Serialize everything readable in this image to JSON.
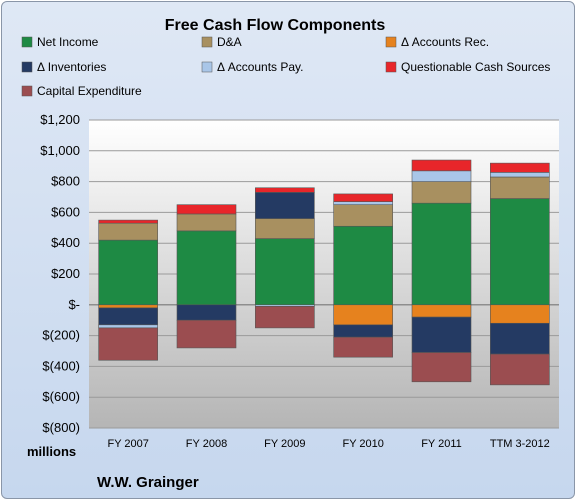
{
  "chart_data": {
    "type": "bar",
    "stacked": true,
    "title": "Free Cash Flow Components",
    "ylabel": "millions",
    "ylim": [
      -800,
      1200
    ],
    "yticks": [
      1200,
      1000,
      800,
      600,
      400,
      200,
      0,
      -200,
      -400,
      -600,
      -800
    ],
    "ytick_labels": [
      "$1,200",
      "$1,000",
      "$800",
      "$600",
      "$400",
      "$200",
      "$-",
      "$(200)",
      "$(400)",
      "$(600)",
      "$(800)"
    ],
    "categories": [
      "FY 2007",
      "FY 2008",
      "FY 2009",
      "FY 2010",
      "FY 2011",
      "TTM 3-2012"
    ],
    "legend_position": "top",
    "grid": true,
    "series": [
      {
        "name": "Net Income",
        "color": "#1e8a44",
        "values": [
          420,
          480,
          430,
          510,
          660,
          690
        ]
      },
      {
        "name": "D&A",
        "color": "#a89060",
        "values": [
          110,
          110,
          130,
          140,
          140,
          140
        ]
      },
      {
        "name": "Δ Accounts Rec.",
        "color": "#e6821e",
        "values": [
          -20,
          0,
          0,
          -130,
          -80,
          -120
        ]
      },
      {
        "name": "Δ Inventories",
        "color": "#243a63",
        "values": [
          -110,
          -100,
          170,
          -80,
          -230,
          -200
        ]
      },
      {
        "name": "Δ Accounts Pay.",
        "color": "#a9c6e8",
        "values": [
          -20,
          0,
          -10,
          20,
          70,
          30
        ]
      },
      {
        "name": "Questionable Cash Sources",
        "color": "#e8262a",
        "values": [
          20,
          60,
          30,
          50,
          70,
          60
        ]
      },
      {
        "name": "Capital Expenditure",
        "color": "#9b4d50",
        "values": [
          -210,
          -180,
          -140,
          -130,
          -190,
          -200
        ]
      }
    ]
  },
  "footer": {
    "company": "W.W. Grainger"
  }
}
